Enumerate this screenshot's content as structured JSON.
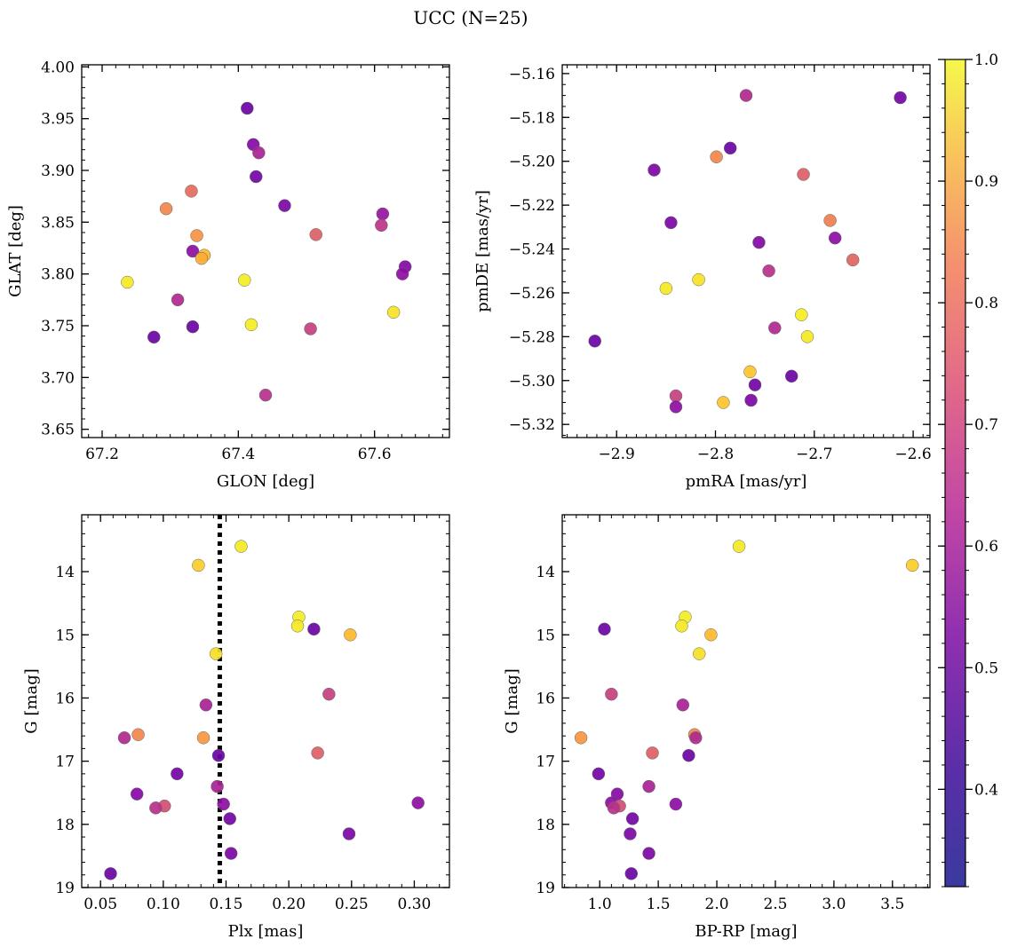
{
  "figure": {
    "title": "UCC (N=25)"
  },
  "colorbar": {
    "range": [
      0.32,
      1.0
    ],
    "ticks": [
      0.4,
      0.5,
      0.6,
      0.7,
      0.8,
      0.9,
      1.0
    ],
    "tick_labels": [
      "0.4",
      "0.5",
      "0.6",
      "0.7",
      "0.8",
      "0.9",
      "1.0"
    ],
    "colormap": "plasma"
  },
  "chart_data": [
    {
      "type": "scatter",
      "id": "glon-glat",
      "xlabel": "GLON [deg]",
      "ylabel": "GLAT [deg]",
      "xlim": [
        67.17,
        67.71
      ],
      "ylim": [
        3.642,
        4.002
      ],
      "xticks": [
        67.2,
        67.4,
        67.6
      ],
      "xtick_labels": [
        "67.2",
        "67.4",
        "67.6"
      ],
      "yticks": [
        3.65,
        3.7,
        3.75,
        3.8,
        3.85,
        3.9,
        3.95,
        4.0
      ],
      "ytick_labels": [
        "3.65",
        "3.70",
        "3.75",
        "3.80",
        "3.85",
        "3.90",
        "3.95",
        "4.00"
      ],
      "y_inverted": false,
      "points": [
        {
          "x": 67.413,
          "y": 3.96,
          "c": 0.36
        },
        {
          "x": 67.422,
          "y": 3.925,
          "c": 0.42
        },
        {
          "x": 67.43,
          "y": 3.917,
          "c": 0.5
        },
        {
          "x": 67.426,
          "y": 3.894,
          "c": 0.38
        },
        {
          "x": 67.331,
          "y": 3.88,
          "c": 0.7
        },
        {
          "x": 67.468,
          "y": 3.866,
          "c": 0.4
        },
        {
          "x": 67.294,
          "y": 3.863,
          "c": 0.76
        },
        {
          "x": 67.612,
          "y": 3.858,
          "c": 0.46
        },
        {
          "x": 67.61,
          "y": 3.847,
          "c": 0.55
        },
        {
          "x": 67.514,
          "y": 3.838,
          "c": 0.66
        },
        {
          "x": 67.339,
          "y": 3.837,
          "c": 0.79
        },
        {
          "x": 67.333,
          "y": 3.822,
          "c": 0.44
        },
        {
          "x": 67.35,
          "y": 3.818,
          "c": 0.88
        },
        {
          "x": 67.346,
          "y": 3.815,
          "c": 0.85
        },
        {
          "x": 67.645,
          "y": 3.807,
          "c": 0.41
        },
        {
          "x": 67.641,
          "y": 3.8,
          "c": 0.44
        },
        {
          "x": 67.409,
          "y": 3.794,
          "c": 0.98
        },
        {
          "x": 67.237,
          "y": 3.792,
          "c": 0.97
        },
        {
          "x": 67.311,
          "y": 3.775,
          "c": 0.52
        },
        {
          "x": 67.628,
          "y": 3.763,
          "c": 0.96
        },
        {
          "x": 67.419,
          "y": 3.751,
          "c": 0.98
        },
        {
          "x": 67.333,
          "y": 3.749,
          "c": 0.36
        },
        {
          "x": 67.506,
          "y": 3.747,
          "c": 0.58
        },
        {
          "x": 67.276,
          "y": 3.739,
          "c": 0.36
        },
        {
          "x": 67.44,
          "y": 3.683,
          "c": 0.54
        }
      ]
    },
    {
      "type": "scatter",
      "id": "pmra-pmde",
      "xlabel": "pmRA [mas/yr]",
      "ylabel": "pmDE [mas/yr]",
      "xlim": [
        -2.955,
        -2.583
      ],
      "ylim": [
        -5.326,
        -5.156
      ],
      "xticks": [
        -2.9,
        -2.8,
        -2.7,
        -2.6
      ],
      "xtick_labels": [
        "−2.9",
        "−2.8",
        "−2.7",
        "−2.6"
      ],
      "yticks": [
        -5.32,
        -5.3,
        -5.28,
        -5.26,
        -5.24,
        -5.22,
        -5.2,
        -5.18,
        -5.16
      ],
      "ytick_labels": [
        "−5.32",
        "−5.30",
        "−5.28",
        "−5.26",
        "−5.24",
        "−5.22",
        "−5.20",
        "−5.18",
        "−5.16"
      ],
      "y_inverted": false,
      "points": [
        {
          "x": -2.769,
          "y": -5.17,
          "c": 0.52
        },
        {
          "x": -2.613,
          "y": -5.171,
          "c": 0.38
        },
        {
          "x": -2.785,
          "y": -5.194,
          "c": 0.36
        },
        {
          "x": -2.799,
          "y": -5.198,
          "c": 0.76
        },
        {
          "x": -2.862,
          "y": -5.204,
          "c": 0.4
        },
        {
          "x": -2.711,
          "y": -5.206,
          "c": 0.66
        },
        {
          "x": -2.845,
          "y": -5.228,
          "c": 0.4
        },
        {
          "x": -2.684,
          "y": -5.227,
          "c": 0.74
        },
        {
          "x": -2.756,
          "y": -5.237,
          "c": 0.41
        },
        {
          "x": -2.679,
          "y": -5.235,
          "c": 0.44
        },
        {
          "x": -2.661,
          "y": -5.245,
          "c": 0.68
        },
        {
          "x": -2.746,
          "y": -5.25,
          "c": 0.54
        },
        {
          "x": -2.817,
          "y": -5.254,
          "c": 0.96
        },
        {
          "x": -2.85,
          "y": -5.258,
          "c": 0.97
        },
        {
          "x": -2.713,
          "y": -5.27,
          "c": 0.98
        },
        {
          "x": -2.74,
          "y": -5.276,
          "c": 0.52
        },
        {
          "x": -2.707,
          "y": -5.28,
          "c": 0.97
        },
        {
          "x": -2.922,
          "y": -5.282,
          "c": 0.36
        },
        {
          "x": -2.765,
          "y": -5.296,
          "c": 0.9
        },
        {
          "x": -2.723,
          "y": -5.298,
          "c": 0.36
        },
        {
          "x": -2.76,
          "y": -5.302,
          "c": 0.38
        },
        {
          "x": -2.84,
          "y": -5.307,
          "c": 0.58
        },
        {
          "x": -2.764,
          "y": -5.309,
          "c": 0.4
        },
        {
          "x": -2.792,
          "y": -5.31,
          "c": 0.9
        },
        {
          "x": -2.84,
          "y": -5.312,
          "c": 0.44
        }
      ]
    },
    {
      "type": "scatter",
      "id": "plx-g",
      "xlabel": "Plx [mas]",
      "ylabel": "G [mag]",
      "xlim": [
        0.035,
        0.328
      ],
      "ylim": [
        13.1,
        19.0
      ],
      "xticks": [
        0.05,
        0.1,
        0.15,
        0.2,
        0.25,
        0.3
      ],
      "xtick_labels": [
        "0.05",
        "0.10",
        "0.15",
        "0.20",
        "0.25",
        "0.30"
      ],
      "yticks": [
        14,
        15,
        16,
        17,
        18,
        19
      ],
      "ytick_labels": [
        "14",
        "15",
        "16",
        "17",
        "18",
        "19"
      ],
      "y_inverted": true,
      "vline": {
        "x": 0.145,
        "style": "dotted"
      },
      "points": [
        {
          "x": 0.162,
          "y": 13.6,
          "c": 0.97
        },
        {
          "x": 0.128,
          "y": 13.9,
          "c": 0.92
        },
        {
          "x": 0.208,
          "y": 14.72,
          "c": 0.98
        },
        {
          "x": 0.207,
          "y": 14.86,
          "c": 0.97
        },
        {
          "x": 0.22,
          "y": 14.91,
          "c": 0.36
        },
        {
          "x": 0.249,
          "y": 15.0,
          "c": 0.88
        },
        {
          "x": 0.142,
          "y": 15.3,
          "c": 0.95
        },
        {
          "x": 0.232,
          "y": 15.94,
          "c": 0.58
        },
        {
          "x": 0.134,
          "y": 16.11,
          "c": 0.5
        },
        {
          "x": 0.08,
          "y": 16.58,
          "c": 0.76
        },
        {
          "x": 0.069,
          "y": 16.63,
          "c": 0.52
        },
        {
          "x": 0.132,
          "y": 16.63,
          "c": 0.8
        },
        {
          "x": 0.223,
          "y": 16.87,
          "c": 0.66
        },
        {
          "x": 0.144,
          "y": 16.91,
          "c": 0.36
        },
        {
          "x": 0.111,
          "y": 17.2,
          "c": 0.38
        },
        {
          "x": 0.143,
          "y": 17.4,
          "c": 0.5
        },
        {
          "x": 0.079,
          "y": 17.52,
          "c": 0.42
        },
        {
          "x": 0.303,
          "y": 17.66,
          "c": 0.44
        },
        {
          "x": 0.148,
          "y": 17.68,
          "c": 0.44
        },
        {
          "x": 0.101,
          "y": 17.71,
          "c": 0.62
        },
        {
          "x": 0.094,
          "y": 17.74,
          "c": 0.54
        },
        {
          "x": 0.153,
          "y": 17.91,
          "c": 0.38
        },
        {
          "x": 0.248,
          "y": 18.15,
          "c": 0.4
        },
        {
          "x": 0.154,
          "y": 18.46,
          "c": 0.4
        },
        {
          "x": 0.058,
          "y": 18.78,
          "c": 0.36
        }
      ]
    },
    {
      "type": "scatter",
      "id": "bprp-g",
      "xlabel": "BP-RP [mag]",
      "ylabel": "G [mag]",
      "xlim": [
        0.68,
        3.82
      ],
      "ylim": [
        13.1,
        19.0
      ],
      "xticks": [
        1.0,
        1.5,
        2.0,
        2.5,
        3.0,
        3.5
      ],
      "xtick_labels": [
        "1.0",
        "1.5",
        "2.0",
        "2.5",
        "3.0",
        "3.5"
      ],
      "yticks": [
        14,
        15,
        16,
        17,
        18,
        19
      ],
      "ytick_labels": [
        "14",
        "15",
        "16",
        "17",
        "18",
        "19"
      ],
      "y_inverted": true,
      "points": [
        {
          "x": 2.19,
          "y": 13.6,
          "c": 0.97
        },
        {
          "x": 3.67,
          "y": 13.9,
          "c": 0.92
        },
        {
          "x": 1.73,
          "y": 14.72,
          "c": 0.98
        },
        {
          "x": 1.7,
          "y": 14.86,
          "c": 0.97
        },
        {
          "x": 1.04,
          "y": 14.91,
          "c": 0.36
        },
        {
          "x": 1.95,
          "y": 15.0,
          "c": 0.88
        },
        {
          "x": 1.85,
          "y": 15.3,
          "c": 0.95
        },
        {
          "x": 1.1,
          "y": 15.94,
          "c": 0.58
        },
        {
          "x": 1.71,
          "y": 16.11,
          "c": 0.5
        },
        {
          "x": 1.81,
          "y": 16.58,
          "c": 0.76
        },
        {
          "x": 1.82,
          "y": 16.63,
          "c": 0.52
        },
        {
          "x": 0.84,
          "y": 16.63,
          "c": 0.8
        },
        {
          "x": 1.45,
          "y": 16.87,
          "c": 0.66
        },
        {
          "x": 1.76,
          "y": 16.91,
          "c": 0.36
        },
        {
          "x": 0.99,
          "y": 17.2,
          "c": 0.38
        },
        {
          "x": 1.42,
          "y": 17.4,
          "c": 0.5
        },
        {
          "x": 1.15,
          "y": 17.52,
          "c": 0.42
        },
        {
          "x": 1.1,
          "y": 17.66,
          "c": 0.44
        },
        {
          "x": 1.65,
          "y": 17.68,
          "c": 0.44
        },
        {
          "x": 1.17,
          "y": 17.71,
          "c": 0.62
        },
        {
          "x": 1.12,
          "y": 17.74,
          "c": 0.54
        },
        {
          "x": 1.28,
          "y": 17.91,
          "c": 0.38
        },
        {
          "x": 1.26,
          "y": 18.15,
          "c": 0.4
        },
        {
          "x": 1.42,
          "y": 18.46,
          "c": 0.4
        },
        {
          "x": 1.27,
          "y": 18.78,
          "c": 0.36
        }
      ]
    }
  ]
}
